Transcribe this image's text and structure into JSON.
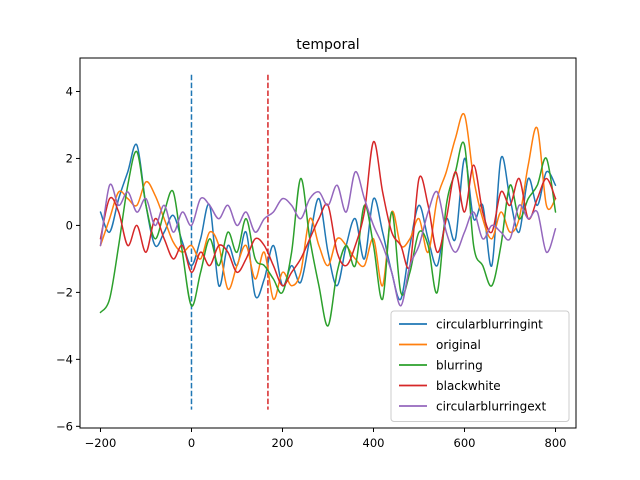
{
  "chart_data": {
    "type": "line",
    "title": "temporal",
    "xlabel": "",
    "ylabel": "",
    "xlim": [
      -245,
      845
    ],
    "ylim": [
      -6.05,
      5.0
    ],
    "x_ticks": [
      -200,
      0,
      200,
      400,
      600,
      800
    ],
    "x_tick_labels": [
      "−200",
      "0",
      "200",
      "400",
      "600",
      "800"
    ],
    "y_ticks": [
      4,
      2,
      0,
      -2,
      -4,
      -6
    ],
    "y_tick_labels": [
      "4",
      "2",
      "0",
      "−2",
      "−4",
      "−6"
    ],
    "grid": false,
    "legend_position": "lower-right",
    "vlines": [
      {
        "x": 0,
        "ymin": -5.5,
        "ymax": 4.5,
        "style": "dashed",
        "color": "#1f77b4"
      },
      {
        "x": 168,
        "ymin": -5.5,
        "ymax": 4.5,
        "style": "dashed",
        "color": "#d62728"
      }
    ],
    "x": [
      -200,
      -180,
      -160,
      -140,
      -120,
      -100,
      -80,
      -60,
      -40,
      -20,
      0,
      20,
      40,
      60,
      80,
      100,
      120,
      140,
      160,
      180,
      200,
      220,
      240,
      260,
      280,
      300,
      320,
      340,
      360,
      380,
      400,
      420,
      440,
      460,
      480,
      500,
      520,
      540,
      560,
      580,
      600,
      620,
      640,
      660,
      680,
      700,
      720,
      740,
      760,
      780,
      800
    ],
    "series": [
      {
        "name": "circularblurringint",
        "color": "#1f77b4",
        "values": [
          0.4,
          -0.2,
          0.8,
          1.6,
          2.4,
          0.6,
          -0.6,
          -0.2,
          0.3,
          -0.5,
          -1.2,
          -0.4,
          0.6,
          -1.8,
          -0.6,
          -1.2,
          -0.2,
          -2.1,
          -1.6,
          -0.6,
          -1.8,
          -1.2,
          -1.7,
          -0.4,
          0.8,
          -0.8,
          -1.8,
          -0.6,
          0.2,
          -1.0,
          0.8,
          -0.2,
          -1.4,
          -2.2,
          -0.6,
          0.6,
          -0.4,
          -1.2,
          0.2,
          -0.4,
          2.0,
          0.2,
          0.6,
          -1.2,
          2.0,
          0.8,
          -0.2,
          1.4,
          0.6,
          1.6,
          1.2
        ]
      },
      {
        "name": "original",
        "color": "#ff7f0e",
        "values": [
          -0.6,
          0.2,
          1.0,
          0.8,
          0.6,
          1.3,
          0.9,
          0.2,
          -0.5,
          -0.8,
          -0.6,
          -1.0,
          -0.2,
          -0.6,
          -1.9,
          -1.2,
          -0.6,
          -1.6,
          -0.8,
          -2.2,
          -1.4,
          -1.8,
          -1.4,
          0.2,
          -0.6,
          -1.2,
          -0.4,
          -0.6,
          -1.0,
          -1.2,
          -0.4,
          -1.8,
          0.4,
          -0.6,
          -0.4,
          0.2,
          -0.8,
          0.8,
          1.6,
          2.6,
          3.3,
          1.4,
          0.2,
          -0.4,
          0.4,
          -0.2,
          0.2,
          1.8,
          2.9,
          0.6,
          0.8
        ]
      },
      {
        "name": "blurring",
        "color": "#2ca02c",
        "values": [
          -2.6,
          -2.2,
          -0.6,
          1.2,
          2.2,
          0.6,
          -0.4,
          0.4,
          1.0,
          -0.8,
          -2.4,
          -1.4,
          -0.4,
          -1.2,
          -0.2,
          -0.8,
          0.2,
          -1.0,
          -1.2,
          -1.6,
          -2.0,
          -0.8,
          1.4,
          -0.4,
          -1.8,
          -3.0,
          -1.4,
          -0.6,
          -1.2,
          0.6,
          -0.6,
          -2.2,
          0.4,
          -2.0,
          -1.4,
          -0.2,
          -0.6,
          -2.0,
          0.6,
          1.6,
          2.4,
          -0.6,
          -1.2,
          -1.8,
          -0.6,
          1.2,
          0.2,
          0.8,
          1.2,
          2.0,
          0.4
        ]
      },
      {
        "name": "blackwhite",
        "color": "#d62728",
        "values": [
          -0.4,
          0.8,
          0.4,
          -0.6,
          0.0,
          -0.8,
          0.2,
          -0.4,
          -1.0,
          -0.6,
          -1.4,
          -0.8,
          -1.2,
          -0.6,
          -0.8,
          -1.4,
          -1.0,
          -0.4,
          -0.6,
          -1.2,
          -1.8,
          -1.4,
          -1.0,
          -0.4,
          0.2,
          0.6,
          -0.8,
          -1.2,
          -0.6,
          0.4,
          2.5,
          1.0,
          -0.2,
          -0.6,
          -1.2,
          1.4,
          0.6,
          -0.8,
          0.2,
          1.6,
          0.4,
          1.8,
          0.4,
          -0.2,
          1.0,
          0.6,
          1.4,
          0.2,
          0.8,
          1.4,
          0.8
        ]
      },
      {
        "name": "circularblurringext",
        "color": "#9467bd",
        "values": [
          -0.6,
          1.2,
          0.6,
          1.0,
          0.4,
          0.8,
          0.0,
          0.6,
          -0.2,
          0.4,
          0.0,
          0.8,
          0.6,
          0.2,
          0.6,
          0.0,
          0.4,
          -0.2,
          0.2,
          0.4,
          0.8,
          0.6,
          0.2,
          0.8,
          1.0,
          0.6,
          1.2,
          0.4,
          1.6,
          0.8,
          0.0,
          -0.6,
          -1.4,
          -2.4,
          -1.2,
          -0.6,
          0.4,
          1.0,
          -0.2,
          -0.8,
          -0.2,
          0.4,
          -0.4,
          0.0,
          -0.2,
          -0.4,
          0.6,
          0.2,
          0.4,
          -0.8,
          -0.1
        ]
      }
    ]
  }
}
